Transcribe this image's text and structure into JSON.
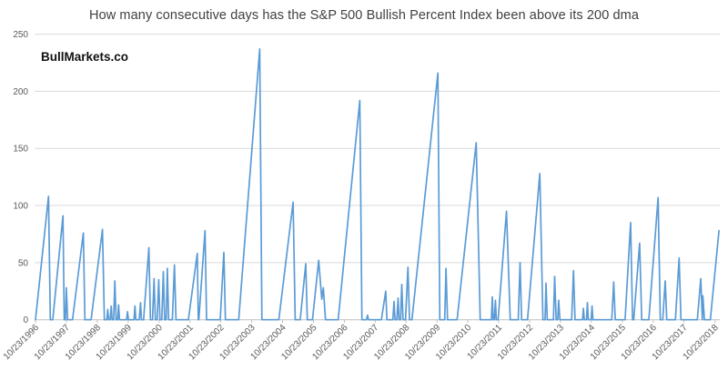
{
  "page": {
    "background": "#ffffff"
  },
  "watermark": {
    "text": "BullMarkets.co"
  },
  "chart_data": {
    "type": "line",
    "title": "How many consecutive days has the S&P 500 Bullish Percent Index been above its 200 dma",
    "series_name": "Consecutive days S&P 500 Bullish Percent Index above its 200 dma",
    "line_color": "#5B9BD5",
    "grid_color": "#D9D9D9",
    "axis_color": "#BFBFBF",
    "label_color": "#595959",
    "title_color": "#404040",
    "grid": true,
    "legend": "none",
    "ylim": [
      0,
      250
    ],
    "y_ticks": [
      0,
      50,
      100,
      150,
      200,
      250
    ],
    "x_unit": "years since 10/23/1996",
    "xlim": [
      0,
      22.17
    ],
    "x_tick_labels": [
      "10/23/1996",
      "10/23/1997",
      "10/23/1998",
      "10/23/1999",
      "10/23/2000",
      "10/23/2001",
      "10/23/2002",
      "10/23/2003",
      "10/23/2004",
      "10/23/2005",
      "10/23/2006",
      "10/23/2007",
      "10/23/2008",
      "10/23/2009",
      "10/23/2010",
      "10/23/2011",
      "10/23/2012",
      "10/23/2013",
      "10/23/2014",
      "10/23/2015",
      "10/23/2016",
      "10/23/2017",
      "10/23/2018"
    ],
    "notable_peaks": [
      {
        "x": 0.42,
        "value": 108
      },
      {
        "x": 0.89,
        "value": 91
      },
      {
        "x": 1.55,
        "value": 76
      },
      {
        "x": 2.17,
        "value": 79
      },
      {
        "x": 3.67,
        "value": 63
      },
      {
        "x": 5.49,
        "value": 78
      },
      {
        "x": 7.26,
        "value": 237
      },
      {
        "x": 8.34,
        "value": 103
      },
      {
        "x": 10.5,
        "value": 192
      },
      {
        "x": 13.03,
        "value": 216
      },
      {
        "x": 14.27,
        "value": 155
      },
      {
        "x": 15.25,
        "value": 95
      },
      {
        "x": 16.33,
        "value": 128
      },
      {
        "x": 19.27,
        "value": 85
      },
      {
        "x": 20.16,
        "value": 107
      },
      {
        "x": 22.13,
        "value": 78
      }
    ],
    "points": [
      [
        0,
        0
      ],
      [
        0.42,
        108
      ],
      [
        0.48,
        0
      ],
      [
        0.56,
        0
      ],
      [
        0.89,
        91
      ],
      [
        0.93,
        0
      ],
      [
        0.97,
        0
      ],
      [
        1.0,
        28
      ],
      [
        1.04,
        0
      ],
      [
        1.2,
        0
      ],
      [
        1.55,
        76
      ],
      [
        1.6,
        0
      ],
      [
        1.8,
        0
      ],
      [
        2.17,
        79
      ],
      [
        2.23,
        0
      ],
      [
        2.31,
        0
      ],
      [
        2.34,
        9
      ],
      [
        2.37,
        0
      ],
      [
        2.42,
        0
      ],
      [
        2.45,
        12
      ],
      [
        2.48,
        0
      ],
      [
        2.53,
        0
      ],
      [
        2.57,
        34
      ],
      [
        2.61,
        0
      ],
      [
        2.66,
        0
      ],
      [
        2.69,
        13
      ],
      [
        2.72,
        0
      ],
      [
        2.95,
        0
      ],
      [
        2.98,
        7
      ],
      [
        3.01,
        0
      ],
      [
        3.19,
        0
      ],
      [
        3.22,
        12
      ],
      [
        3.25,
        0
      ],
      [
        3.36,
        0
      ],
      [
        3.4,
        15
      ],
      [
        3.43,
        0
      ],
      [
        3.5,
        0
      ],
      [
        3.67,
        63
      ],
      [
        3.72,
        0
      ],
      [
        3.79,
        0
      ],
      [
        3.84,
        36
      ],
      [
        3.88,
        0
      ],
      [
        3.94,
        0
      ],
      [
        3.99,
        35
      ],
      [
        4.03,
        0
      ],
      [
        4.09,
        0
      ],
      [
        4.14,
        42
      ],
      [
        4.18,
        0
      ],
      [
        4.23,
        0
      ],
      [
        4.27,
        45
      ],
      [
        4.31,
        0
      ],
      [
        4.43,
        0
      ],
      [
        4.5,
        48
      ],
      [
        4.55,
        0
      ],
      [
        4.95,
        0
      ],
      [
        5.24,
        58
      ],
      [
        5.27,
        0
      ],
      [
        5.29,
        0
      ],
      [
        5.49,
        78
      ],
      [
        5.54,
        0
      ],
      [
        5.98,
        0
      ],
      [
        6.1,
        59
      ],
      [
        6.15,
        0
      ],
      [
        6.58,
        0
      ],
      [
        7.26,
        237
      ],
      [
        7.33,
        0
      ],
      [
        7.88,
        0
      ],
      [
        8.34,
        103
      ],
      [
        8.41,
        0
      ],
      [
        8.57,
        0
      ],
      [
        8.75,
        49
      ],
      [
        8.8,
        0
      ],
      [
        8.97,
        0
      ],
      [
        9.17,
        52
      ],
      [
        9.27,
        18
      ],
      [
        9.32,
        28
      ],
      [
        9.39,
        0
      ],
      [
        9.8,
        0
      ],
      [
        10.5,
        192
      ],
      [
        10.57,
        0
      ],
      [
        10.72,
        0
      ],
      [
        10.75,
        4
      ],
      [
        10.78,
        0
      ],
      [
        11.2,
        0
      ],
      [
        11.34,
        25
      ],
      [
        11.38,
        0
      ],
      [
        11.57,
        0
      ],
      [
        11.61,
        16
      ],
      [
        11.64,
        0
      ],
      [
        11.7,
        0
      ],
      [
        11.74,
        19
      ],
      [
        11.77,
        0
      ],
      [
        11.82,
        0
      ],
      [
        11.86,
        31
      ],
      [
        11.9,
        0
      ],
      [
        11.98,
        0
      ],
      [
        12.06,
        46
      ],
      [
        12.11,
        0
      ],
      [
        12.19,
        0
      ],
      [
        13.03,
        216
      ],
      [
        13.09,
        0
      ],
      [
        13.25,
        0
      ],
      [
        13.29,
        45
      ],
      [
        13.34,
        0
      ],
      [
        13.65,
        0
      ],
      [
        14.27,
        155
      ],
      [
        14.4,
        0
      ],
      [
        14.76,
        0
      ],
      [
        14.79,
        20
      ],
      [
        14.82,
        0
      ],
      [
        14.86,
        0
      ],
      [
        14.89,
        17
      ],
      [
        14.92,
        0
      ],
      [
        14.98,
        0
      ],
      [
        15.25,
        95
      ],
      [
        15.37,
        0
      ],
      [
        15.63,
        0
      ],
      [
        15.69,
        50
      ],
      [
        15.74,
        0
      ],
      [
        15.93,
        0
      ],
      [
        16.33,
        128
      ],
      [
        16.43,
        0
      ],
      [
        16.5,
        0
      ],
      [
        16.53,
        32
      ],
      [
        16.57,
        0
      ],
      [
        16.77,
        0
      ],
      [
        16.81,
        38
      ],
      [
        16.86,
        0
      ],
      [
        16.91,
        0
      ],
      [
        16.94,
        17
      ],
      [
        16.98,
        0
      ],
      [
        17.36,
        0
      ],
      [
        17.42,
        43
      ],
      [
        17.47,
        0
      ],
      [
        17.71,
        0
      ],
      [
        17.74,
        10
      ],
      [
        17.77,
        0
      ],
      [
        17.84,
        0
      ],
      [
        17.87,
        15
      ],
      [
        17.9,
        0
      ],
      [
        17.99,
        0
      ],
      [
        18.02,
        12
      ],
      [
        18.05,
        0
      ],
      [
        18.66,
        0
      ],
      [
        18.72,
        33
      ],
      [
        18.77,
        0
      ],
      [
        19.09,
        0
      ],
      [
        19.27,
        85
      ],
      [
        19.33,
        0
      ],
      [
        19.37,
        0
      ],
      [
        19.56,
        67
      ],
      [
        19.63,
        0
      ],
      [
        19.86,
        0
      ],
      [
        20.16,
        107
      ],
      [
        20.23,
        0
      ],
      [
        20.31,
        0
      ],
      [
        20.39,
        34
      ],
      [
        20.44,
        0
      ],
      [
        20.72,
        0
      ],
      [
        20.84,
        54
      ],
      [
        20.9,
        0
      ],
      [
        21.43,
        0
      ],
      [
        21.54,
        36
      ],
      [
        21.59,
        0
      ],
      [
        21.61,
        21
      ],
      [
        21.66,
        0
      ],
      [
        21.85,
        0
      ],
      [
        22.13,
        78
      ]
    ]
  }
}
